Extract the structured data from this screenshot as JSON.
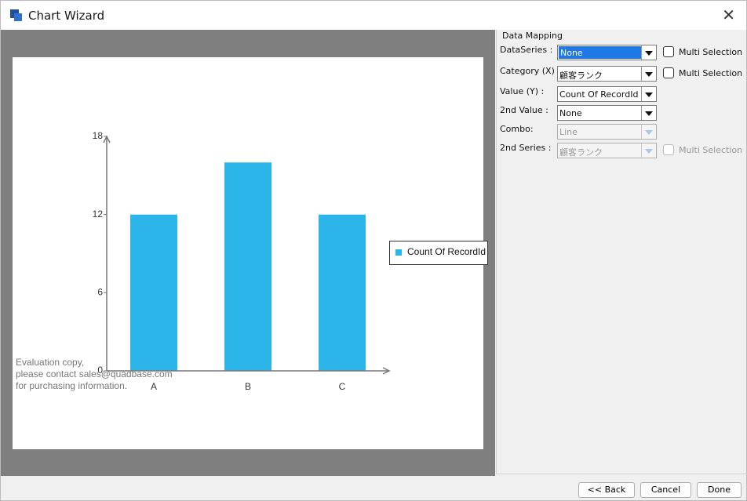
{
  "window": {
    "title": "Chart Wizard"
  },
  "chart_data": {
    "type": "bar",
    "categories": [
      "A",
      "B",
      "C"
    ],
    "series": [
      {
        "name": "Count Of RecordId",
        "color": "#2bb5e8",
        "values": [
          12,
          16,
          12
        ]
      }
    ],
    "ylim": [
      0,
      18
    ],
    "yticks": [
      0,
      6,
      12,
      18
    ]
  },
  "watermark": [
    "Evaluation copy,",
    "please contact sales@quadbase.com",
    "for purchasing information."
  ],
  "panel": {
    "title": "Data Mapping",
    "fields": [
      {
        "label": "DataSeries :",
        "value": "None",
        "selected": true,
        "checkbox": "Multi Selection"
      },
      {
        "label": "Category (X) :",
        "value": "顧客ランク",
        "checkbox": "Multi Selection"
      },
      {
        "label": "Value (Y) :",
        "value": "Count Of RecordId"
      },
      {
        "label": "2nd Value :",
        "value": "None"
      },
      {
        "label": "Combo:",
        "value": "Line",
        "disabled": true
      },
      {
        "label": "2nd Series :",
        "value": "顧客ランク",
        "disabled": true,
        "checkbox": "Multi Selection"
      }
    ]
  },
  "buttons": [
    "<< Back",
    "Cancel",
    "Done"
  ]
}
